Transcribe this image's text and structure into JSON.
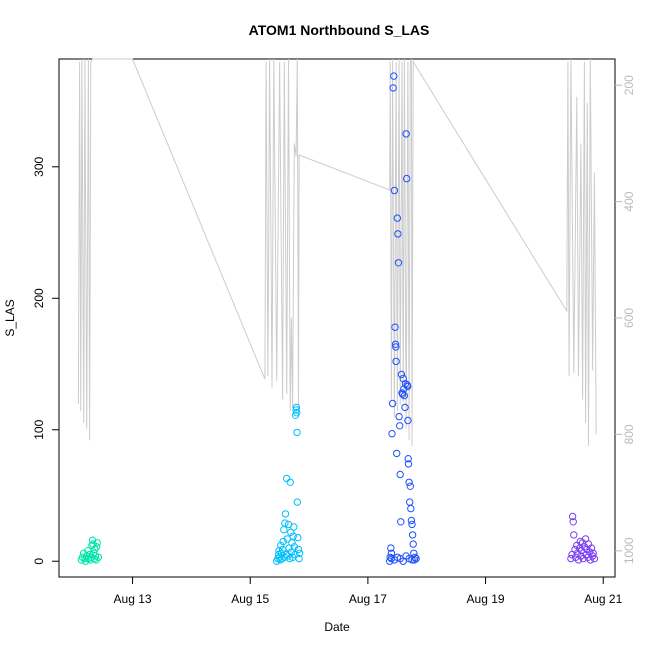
{
  "chart_data": {
    "type": "scatter",
    "title": "ATOM1 Northbound S_LAS",
    "xlabel": "Date",
    "ylabel": "S_LAS",
    "x_tick_labels": [
      "Aug 13",
      "Aug 15",
      "Aug 17",
      "Aug 19",
      "Aug 21"
    ],
    "x_tick_days": [
      13,
      15,
      17,
      19,
      21
    ],
    "xlim_days": [
      11.75,
      21.2
    ],
    "ylim": [
      -12,
      382
    ],
    "y_ticks": [
      0,
      100,
      200,
      300
    ],
    "right_axis": {
      "ylim_inverted": [
        1045,
        155
      ],
      "ticks": [
        200,
        400,
        600,
        800,
        1000
      ],
      "color": "#bbbbbb"
    },
    "grid": false,
    "legend": "none",
    "series": [
      {
        "color": "#00E5A8",
        "points": [
          [
            12.13,
            1
          ],
          [
            12.15,
            3
          ],
          [
            12.17,
            6
          ],
          [
            12.19,
            2
          ],
          [
            12.2,
            0
          ],
          [
            12.22,
            4
          ],
          [
            12.24,
            8
          ],
          [
            12.25,
            2
          ],
          [
            12.27,
            5
          ],
          [
            12.28,
            1
          ],
          [
            12.3,
            3
          ],
          [
            12.31,
            12
          ],
          [
            12.32,
            16
          ],
          [
            12.33,
            13
          ],
          [
            12.34,
            6
          ],
          [
            12.35,
            2
          ],
          [
            12.36,
            9
          ],
          [
            12.37,
            4
          ],
          [
            12.38,
            1
          ],
          [
            12.39,
            11
          ],
          [
            12.4,
            14
          ],
          [
            12.42,
            3
          ]
        ]
      },
      {
        "color": "#00BFFF",
        "points": [
          [
            15.45,
            0
          ],
          [
            15.47,
            2
          ],
          [
            15.48,
            5
          ],
          [
            15.49,
            8
          ],
          [
            15.5,
            3
          ],
          [
            15.51,
            1
          ],
          [
            15.52,
            12
          ],
          [
            15.53,
            6
          ],
          [
            15.54,
            2
          ],
          [
            15.55,
            9
          ],
          [
            15.56,
            15
          ],
          [
            15.57,
            24
          ],
          [
            15.58,
            3
          ],
          [
            15.59,
            29
          ],
          [
            15.6,
            36
          ],
          [
            15.61,
            5
          ],
          [
            15.62,
            63
          ],
          [
            15.63,
            17
          ],
          [
            15.64,
            4
          ],
          [
            15.65,
            28
          ],
          [
            15.66,
            10
          ],
          [
            15.67,
            2
          ],
          [
            15.68,
            60
          ],
          [
            15.69,
            22
          ],
          [
            15.7,
            7
          ],
          [
            15.71,
            14
          ],
          [
            15.72,
            3
          ],
          [
            15.73,
            19
          ],
          [
            15.74,
            26
          ],
          [
            15.75,
            11
          ],
          [
            15.76,
            5
          ],
          [
            15.77,
            111
          ],
          [
            15.78,
            115
          ],
          [
            15.785,
            117
          ],
          [
            15.79,
            113
          ],
          [
            15.795,
            98
          ],
          [
            15.8,
            45
          ],
          [
            15.81,
            18
          ],
          [
            15.82,
            9
          ],
          [
            15.83,
            2
          ],
          [
            15.84,
            6
          ]
        ]
      },
      {
        "color": "#1E50FF",
        "points": [
          [
            17.37,
            0
          ],
          [
            17.38,
            3
          ],
          [
            17.39,
            10
          ],
          [
            17.4,
            6
          ],
          [
            17.41,
            97
          ],
          [
            17.42,
            120
          ],
          [
            17.43,
            360
          ],
          [
            17.44,
            369
          ],
          [
            17.45,
            282
          ],
          [
            17.46,
            178
          ],
          [
            17.47,
            165
          ],
          [
            17.475,
            163
          ],
          [
            17.48,
            152
          ],
          [
            17.49,
            82
          ],
          [
            17.5,
            261
          ],
          [
            17.51,
            249
          ],
          [
            17.52,
            227
          ],
          [
            17.53,
            110
          ],
          [
            17.54,
            103
          ],
          [
            17.55,
            66
          ],
          [
            17.56,
            30
          ],
          [
            17.57,
            142
          ],
          [
            17.58,
            128
          ],
          [
            17.59,
            127
          ],
          [
            17.6,
            139
          ],
          [
            17.61,
            131
          ],
          [
            17.62,
            126
          ],
          [
            17.63,
            117
          ],
          [
            17.64,
            135
          ],
          [
            17.65,
            325
          ],
          [
            17.66,
            291
          ],
          [
            17.67,
            134
          ],
          [
            17.675,
            133
          ],
          [
            17.68,
            107
          ],
          [
            17.685,
            78
          ],
          [
            17.69,
            74
          ],
          [
            17.7,
            60
          ],
          [
            17.71,
            45
          ],
          [
            17.72,
            57
          ],
          [
            17.73,
            40
          ],
          [
            17.74,
            31
          ],
          [
            17.75,
            28
          ],
          [
            17.76,
            20
          ],
          [
            17.77,
            13
          ],
          [
            17.78,
            6
          ],
          [
            17.79,
            1
          ],
          [
            17.4,
            2
          ],
          [
            17.45,
            1
          ],
          [
            17.5,
            3
          ],
          [
            17.55,
            2
          ],
          [
            17.6,
            0
          ],
          [
            17.65,
            4
          ],
          [
            17.7,
            2
          ],
          [
            17.75,
            1
          ],
          [
            17.8,
            3
          ],
          [
            17.82,
            2
          ]
        ]
      },
      {
        "color": "#7B3FF2",
        "points": [
          [
            20.45,
            2
          ],
          [
            20.47,
            5
          ],
          [
            20.48,
            34
          ],
          [
            20.49,
            30
          ],
          [
            20.5,
            20
          ],
          [
            20.52,
            9
          ],
          [
            20.53,
            3
          ],
          [
            20.55,
            12
          ],
          [
            20.56,
            6
          ],
          [
            20.58,
            1
          ],
          [
            20.6,
            10
          ],
          [
            20.61,
            15
          ],
          [
            20.62,
            4
          ],
          [
            20.63,
            8
          ],
          [
            20.65,
            14
          ],
          [
            20.66,
            2
          ],
          [
            20.68,
            11
          ],
          [
            20.7,
            17
          ],
          [
            20.71,
            5
          ],
          [
            20.72,
            9
          ],
          [
            20.74,
            3
          ],
          [
            20.75,
            13
          ],
          [
            20.77,
            7
          ],
          [
            20.78,
            1
          ],
          [
            20.8,
            10
          ],
          [
            20.82,
            4
          ],
          [
            20.83,
            6
          ],
          [
            20.85,
            2
          ]
        ]
      }
    ],
    "line_series": {
      "color": "#cccccc",
      "axis": "right",
      "points": [
        [
          12.08,
          748
        ],
        [
          12.1,
          160
        ],
        [
          12.12,
          760
        ],
        [
          12.14,
          155
        ],
        [
          12.17,
          780
        ],
        [
          12.19,
          155
        ],
        [
          12.22,
          790
        ],
        [
          12.25,
          155
        ],
        [
          12.27,
          810
        ],
        [
          12.29,
          160
        ],
        [
          12.32,
          155
        ],
        [
          13,
          155
        ],
        [
          15.25,
          705
        ],
        [
          15.27,
          160
        ],
        [
          15.3,
          700
        ],
        [
          15.33,
          155
        ],
        [
          15.37,
          720
        ],
        [
          15.4,
          155
        ],
        [
          15.45,
          708
        ],
        [
          15.5,
          160
        ],
        [
          15.55,
          740
        ],
        [
          15.58,
          160
        ],
        [
          15.62,
          730
        ],
        [
          15.65,
          155
        ],
        [
          15.68,
          760
        ],
        [
          15.7,
          600
        ],
        [
          15.72,
          755
        ],
        [
          15.75,
          300
        ],
        [
          15.78,
          322
        ],
        [
          15.8,
          155
        ],
        [
          15.82,
          760
        ],
        [
          15.83,
          320
        ],
        [
          17.37,
          380
        ],
        [
          17.38,
          160
        ],
        [
          17.4,
          740
        ],
        [
          17.42,
          155
        ],
        [
          17.45,
          770
        ],
        [
          17.48,
          160
        ],
        [
          17.5,
          760
        ],
        [
          17.53,
          155
        ],
        [
          17.55,
          750
        ],
        [
          17.58,
          160
        ],
        [
          17.6,
          745
        ],
        [
          17.62,
          155
        ],
        [
          17.65,
          790
        ],
        [
          17.68,
          160
        ],
        [
          17.7,
          810
        ],
        [
          17.72,
          160
        ],
        [
          17.74,
          155
        ],
        [
          17.75,
          820
        ],
        [
          17.77,
          160
        ],
        [
          20.38,
          588
        ],
        [
          20.4,
          160
        ],
        [
          20.42,
          700
        ],
        [
          20.45,
          150
        ],
        [
          20.5,
          695
        ],
        [
          20.55,
          220
        ],
        [
          20.58,
          700
        ],
        [
          20.62,
          300
        ],
        [
          20.65,
          740
        ],
        [
          20.68,
          160
        ],
        [
          20.7,
          780
        ],
        [
          20.73,
          230
        ],
        [
          20.75,
          820
        ],
        [
          20.78,
          155
        ],
        [
          20.82,
          690
        ],
        [
          20.85,
          350
        ],
        [
          20.88,
          800
        ]
      ]
    }
  }
}
